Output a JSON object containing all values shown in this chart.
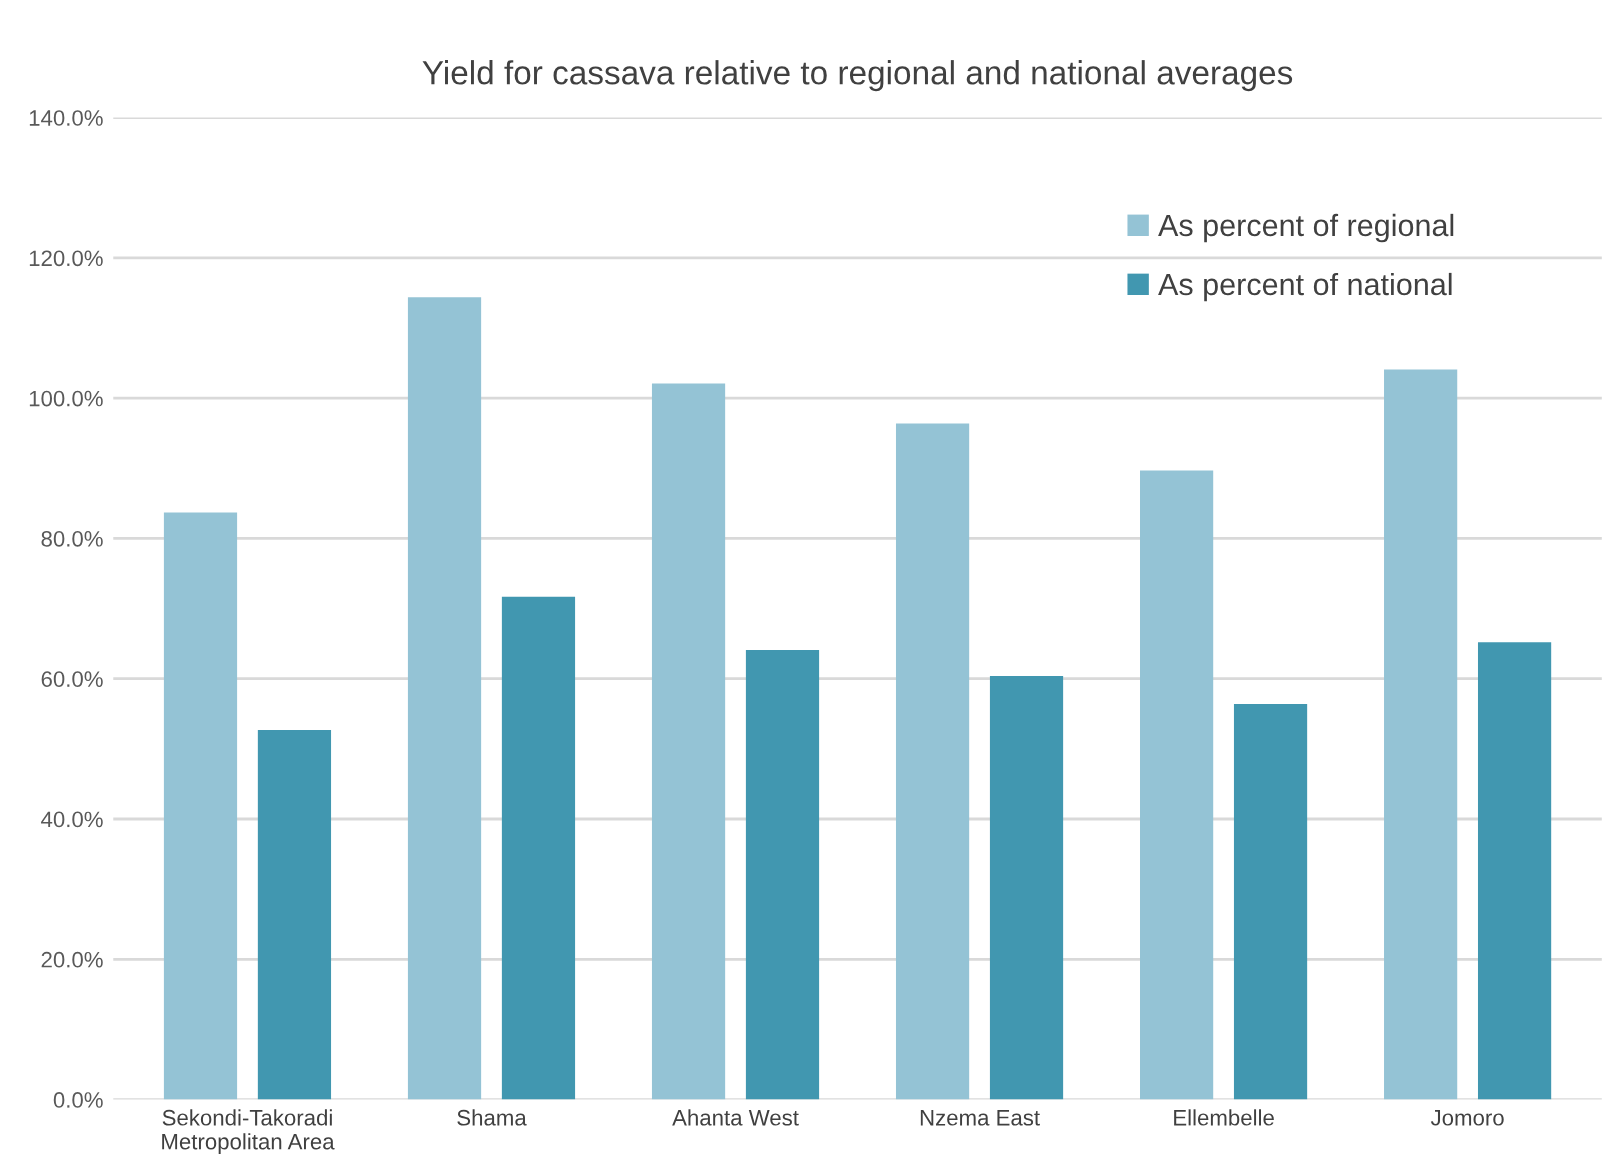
{
  "chart_data": {
    "type": "bar",
    "title": "Yield for cassava relative to regional and national averages",
    "categories": [
      "Sekondi-Takoradi\nMetropolitan Area",
      "Shama",
      "Ahanta West",
      "Nzema East",
      "Ellembelle",
      "Jomoro"
    ],
    "series": [
      {
        "name": "As percent of regional",
        "color": "#94c3d5",
        "values": [
          83.7,
          114.4,
          102.1,
          96.4,
          89.7,
          104.1
        ]
      },
      {
        "name": "As percent of national",
        "color": "#4197b0",
        "values": [
          52.7,
          71.7,
          64.1,
          60.4,
          56.4,
          65.2
        ]
      }
    ],
    "ylim": [
      0,
      140
    ],
    "yticks": [
      {
        "value": 0,
        "label": "0.0%"
      },
      {
        "value": 20,
        "label": "20.0%"
      },
      {
        "value": 40,
        "label": "40.0%"
      },
      {
        "value": 60,
        "label": "60.0%"
      },
      {
        "value": 80,
        "label": "80.0%"
      },
      {
        "value": 100,
        "label": "100.0%"
      },
      {
        "value": 120,
        "label": "120.0%"
      },
      {
        "value": 140,
        "label": "140.0%"
      }
    ],
    "grid": "y",
    "legend": "top right"
  }
}
